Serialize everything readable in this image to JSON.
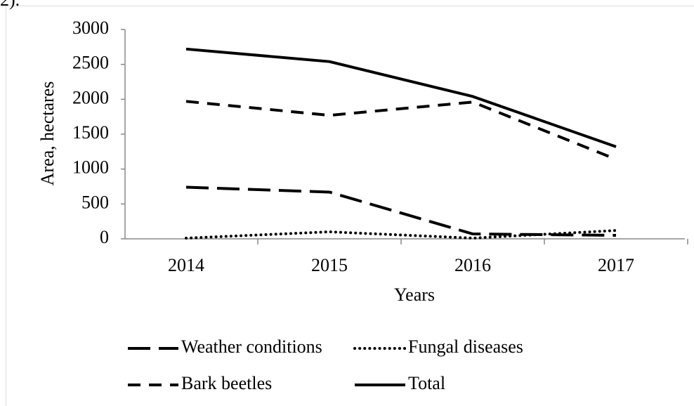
{
  "fragment_text": "2).",
  "chart_data": {
    "type": "line",
    "x_label": "Years",
    "y_label": "Area, hectares",
    "categories": [
      "2014",
      "2015",
      "2016",
      "2017"
    ],
    "ylim": [
      0,
      3000
    ],
    "yticks": [
      0,
      500,
      1000,
      1500,
      2000,
      2500,
      3000
    ],
    "grid": false,
    "legend": "bottom",
    "series": [
      {
        "name": "Weather conditions",
        "color": "#000000",
        "line_style": "long-dash",
        "values": [
          740,
          670,
          70,
          50
        ]
      },
      {
        "name": "Fungal diseases",
        "color": "#000000",
        "line_style": "dotted",
        "values": [
          10,
          100,
          10,
          120
        ]
      },
      {
        "name": "Bark beetles",
        "color": "#000000",
        "line_style": "dashed",
        "values": [
          1970,
          1770,
          1960,
          1140
        ]
      },
      {
        "name": "Total",
        "color": "#000000",
        "line_style": "solid",
        "values": [
          2720,
          2540,
          2040,
          1320
        ]
      }
    ]
  }
}
